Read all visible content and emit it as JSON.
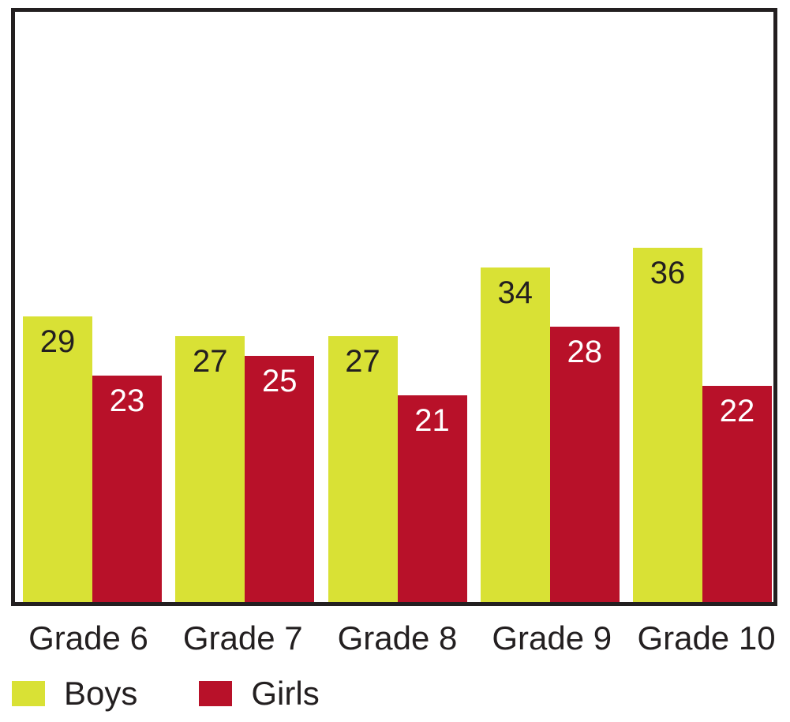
{
  "chart_data": {
    "type": "bar",
    "categories": [
      "Grade 6",
      "Grade 7",
      "Grade 8",
      "Grade 9",
      "Grade 10"
    ],
    "series": [
      {
        "name": "Boys",
        "color": "#d9e135",
        "label_color": "#231f20",
        "values": [
          29,
          27,
          27,
          34,
          36
        ]
      },
      {
        "name": "Girls",
        "color": "#b81129",
        "label_color": "#ffffff",
        "values": [
          23,
          25,
          21,
          28,
          22
        ]
      }
    ],
    "title": "",
    "xlabel": "",
    "ylabel": "",
    "ylim": [
      0,
      60
    ],
    "grid": false,
    "axis_ticks_visible": false,
    "value_labels": "inside-top",
    "legend_position": "bottom-left",
    "plot_border_color": "#231f20",
    "background_color": "#ffffff"
  },
  "legend": {
    "items": [
      {
        "label": "Boys",
        "color": "#d9e135"
      },
      {
        "label": "Girls",
        "color": "#b81129"
      }
    ]
  }
}
